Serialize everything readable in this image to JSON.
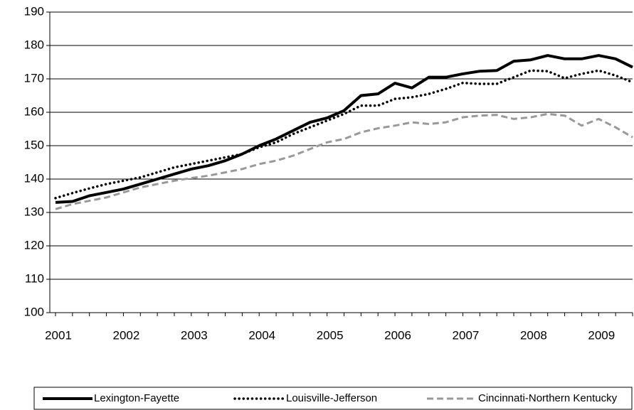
{
  "chart_data": {
    "type": "line",
    "categories": [
      "2001",
      null,
      null,
      null,
      "2002",
      null,
      null,
      null,
      "2003",
      null,
      null,
      null,
      "2004",
      null,
      null,
      null,
      "2005",
      null,
      null,
      null,
      "2006",
      null,
      null,
      null,
      "2007",
      null,
      null,
      null,
      "2008",
      null,
      null,
      null,
      "2009",
      null,
      null
    ],
    "series": [
      {
        "name": "Lexington-Fayette",
        "color": "#000000",
        "style": "solid",
        "values": [
          133,
          133.3,
          135,
          136,
          137,
          138.5,
          140,
          141.5,
          143,
          144,
          145.5,
          147.5,
          150,
          152,
          154.5,
          157,
          158.3,
          160.5,
          165,
          165.5,
          168.7,
          167.3,
          170.5,
          170.5,
          171.5,
          172.3,
          172.5,
          175.3,
          175.7,
          177,
          176,
          176,
          177,
          176,
          173.5
        ]
      },
      {
        "name": "Louisville-Jefferson",
        "color": "#000000",
        "style": "dotted",
        "values": [
          134.3,
          135.8,
          137.2,
          138.5,
          139.5,
          140.5,
          142,
          143.5,
          144.5,
          145.5,
          146.5,
          147.5,
          149.5,
          151,
          153.5,
          155.5,
          157.5,
          159.5,
          162,
          162,
          164,
          164.5,
          165.5,
          167,
          168.8,
          168.5,
          168.5,
          170.5,
          172.5,
          172.3,
          170.2,
          171.5,
          172.5,
          171,
          169
        ]
      },
      {
        "name": "Cincinnati-Northern Kentucky",
        "color": "#999999",
        "style": "dashed",
        "values": [
          131,
          132.5,
          133.5,
          134.5,
          136,
          137.5,
          138.5,
          139.5,
          140.3,
          141,
          142,
          143,
          144.5,
          145.5,
          147,
          149,
          151,
          152,
          154,
          155.2,
          156,
          157,
          156.5,
          157,
          158.5,
          159,
          159.2,
          158,
          158.5,
          159.5,
          159,
          156,
          158,
          155.5,
          152.5
        ]
      }
    ],
    "ylim": [
      100,
      190
    ],
    "yticks": [
      100,
      110,
      120,
      130,
      140,
      150,
      160,
      170,
      180,
      190
    ],
    "grid": true,
    "legend": "bottom"
  }
}
